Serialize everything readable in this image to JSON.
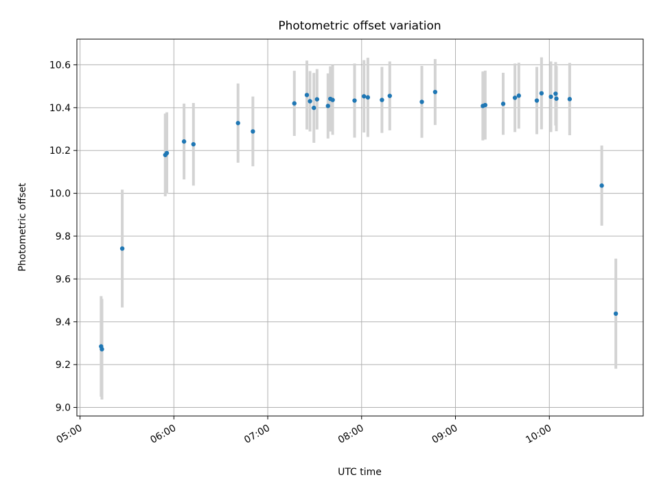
{
  "chart_data": {
    "type": "scatter",
    "title": "Photometric offset variation",
    "xlabel": "UTC time",
    "ylabel": "Photometric offset",
    "grid": true,
    "xlim": [
      "04:58",
      "11:00"
    ],
    "ylim": [
      8.96,
      10.72
    ],
    "xticks": [
      "05:00",
      "06:00",
      "07:00",
      "08:00",
      "09:00",
      "10:00"
    ],
    "yticks": [
      "9.0",
      "9.2",
      "9.4",
      "9.6",
      "9.8",
      "10.0",
      "10.2",
      "10.4",
      "10.6"
    ],
    "colors": {
      "marker": "#1f77b4",
      "errorbar": "#d3d3d3",
      "grid": "#b0b0b0"
    },
    "series": [
      {
        "points": [
          {
            "x": "05:13:30",
            "y": 9.285,
            "err": 0.235
          },
          {
            "x": "05:14:00",
            "y": 9.272,
            "err": 0.235
          },
          {
            "x": "05:27:00",
            "y": 9.742,
            "err": 0.275
          },
          {
            "x": "05:54:30",
            "y": 10.179,
            "err": 0.193
          },
          {
            "x": "05:55:30",
            "y": 10.188,
            "err": 0.19
          },
          {
            "x": "06:06:30",
            "y": 10.242,
            "err": 0.177
          },
          {
            "x": "06:12:30",
            "y": 10.229,
            "err": 0.193
          },
          {
            "x": "06:41:00",
            "y": 10.328,
            "err": 0.185
          },
          {
            "x": "06:50:30",
            "y": 10.289,
            "err": 0.163
          },
          {
            "x": "07:17:00",
            "y": 10.42,
            "err": 0.152
          },
          {
            "x": "07:25:00",
            "y": 10.459,
            "err": 0.161
          },
          {
            "x": "07:27:00",
            "y": 10.43,
            "err": 0.141
          },
          {
            "x": "07:29:30",
            "y": 10.399,
            "err": 0.163
          },
          {
            "x": "07:31:30",
            "y": 10.439,
            "err": 0.141
          },
          {
            "x": "07:38:30",
            "y": 10.408,
            "err": 0.152
          },
          {
            "x": "07:40:00",
            "y": 10.441,
            "err": 0.152
          },
          {
            "x": "07:41:30",
            "y": 10.436,
            "err": 0.163
          },
          {
            "x": "07:55:30",
            "y": 10.433,
            "err": 0.173
          },
          {
            "x": "08:01:30",
            "y": 10.453,
            "err": 0.169
          },
          {
            "x": "08:04:00",
            "y": 10.448,
            "err": 0.185
          },
          {
            "x": "08:13:00",
            "y": 10.436,
            "err": 0.154
          },
          {
            "x": "08:18:00",
            "y": 10.455,
            "err": 0.161
          },
          {
            "x": "08:38:30",
            "y": 10.427,
            "err": 0.168
          },
          {
            "x": "08:47:00",
            "y": 10.473,
            "err": 0.154
          },
          {
            "x": "09:17:30",
            "y": 10.408,
            "err": 0.161
          },
          {
            "x": "09:19:00",
            "y": 10.412,
            "err": 0.161
          },
          {
            "x": "09:30:30",
            "y": 10.418,
            "err": 0.145
          },
          {
            "x": "09:38:00",
            "y": 10.446,
            "err": 0.16
          },
          {
            "x": "09:40:30",
            "y": 10.456,
            "err": 0.154
          },
          {
            "x": "09:52:00",
            "y": 10.433,
            "err": 0.157
          },
          {
            "x": "09:55:00",
            "y": 10.467,
            "err": 0.168
          },
          {
            "x": "10:01:00",
            "y": 10.451,
            "err": 0.165
          },
          {
            "x": "10:04:00",
            "y": 10.465,
            "err": 0.148
          },
          {
            "x": "10:04:30",
            "y": 10.442,
            "err": 0.152
          },
          {
            "x": "10:13:00",
            "y": 10.44,
            "err": 0.169
          },
          {
            "x": "10:33:30",
            "y": 10.036,
            "err": 0.187
          },
          {
            "x": "10:42:30",
            "y": 9.438,
            "err": 0.257
          }
        ]
      }
    ]
  }
}
